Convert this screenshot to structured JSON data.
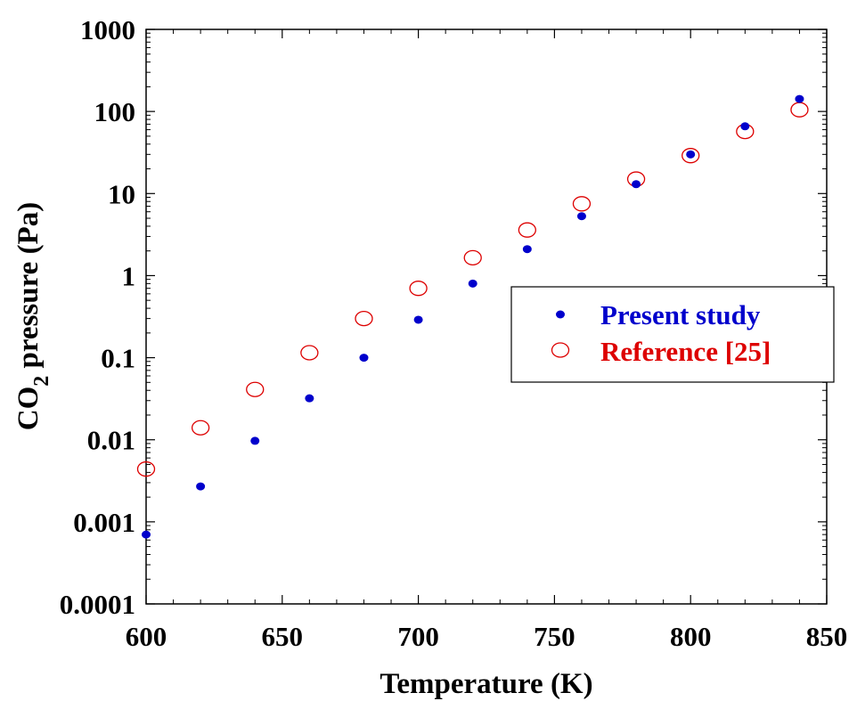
{
  "chart_data": {
    "type": "scatter",
    "xlabel": "Temperature (K)",
    "ylabel": {
      "prefix": "CO",
      "subscript": "2",
      "suffix": " pressure (Pa)"
    },
    "xlim": [
      600,
      850
    ],
    "ylim": [
      0.0001,
      1000
    ],
    "yscale": "log",
    "x_ticks": [
      600,
      650,
      700,
      750,
      800,
      850
    ],
    "x_tick_labels": [
      "600",
      "650",
      "700",
      "750",
      "800",
      "850"
    ],
    "y_ticks": [
      0.0001,
      0.001,
      0.01,
      0.1,
      1,
      10,
      100,
      1000
    ],
    "y_tick_labels": [
      "0.0001",
      "0.001",
      "0.01",
      "0.1",
      "1",
      "10",
      "100",
      "1000"
    ],
    "grid": false,
    "legend_position": "right",
    "series": [
      {
        "name": "Present study",
        "marker": "filled-circle",
        "color": "#0000CC",
        "points": [
          {
            "x": 600,
            "y": 0.0007
          },
          {
            "x": 620,
            "y": 0.0027
          },
          {
            "x": 640,
            "y": 0.0097
          },
          {
            "x": 660,
            "y": 0.032
          },
          {
            "x": 680,
            "y": 0.1
          },
          {
            "x": 700,
            "y": 0.29
          },
          {
            "x": 720,
            "y": 0.8
          },
          {
            "x": 740,
            "y": 2.1
          },
          {
            "x": 760,
            "y": 5.3
          },
          {
            "x": 780,
            "y": 13
          },
          {
            "x": 800,
            "y": 30
          },
          {
            "x": 820,
            "y": 66
          },
          {
            "x": 840,
            "y": 142
          }
        ]
      },
      {
        "name": "Reference [25]",
        "marker": "open-circle",
        "color": "#DD0000",
        "points": [
          {
            "x": 600,
            "y": 0.0044
          },
          {
            "x": 620,
            "y": 0.014
          },
          {
            "x": 640,
            "y": 0.041
          },
          {
            "x": 660,
            "y": 0.115
          },
          {
            "x": 680,
            "y": 0.3
          },
          {
            "x": 700,
            "y": 0.7
          },
          {
            "x": 720,
            "y": 1.65
          },
          {
            "x": 740,
            "y": 3.6
          },
          {
            "x": 760,
            "y": 7.5
          },
          {
            "x": 780,
            "y": 15
          },
          {
            "x": 800,
            "y": 29
          },
          {
            "x": 820,
            "y": 57
          },
          {
            "x": 840,
            "y": 105
          }
        ]
      }
    ]
  }
}
